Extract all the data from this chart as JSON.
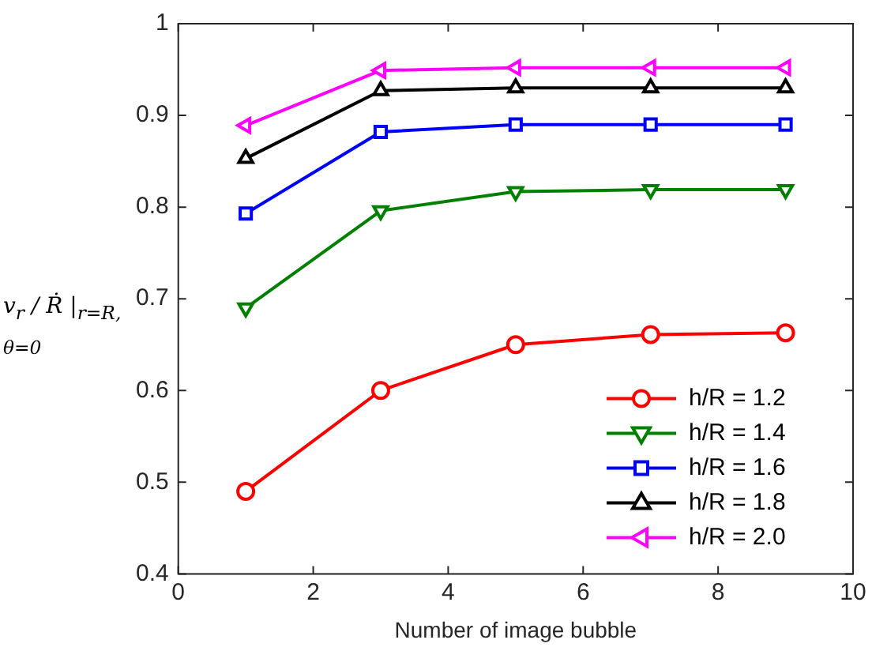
{
  "chart_data": {
    "type": "line",
    "xlabel": "Number of image bubble",
    "ylabel": "v$_{r}$ / Ṙ |$_{r=R, θ=0}$",
    "x": [
      1,
      3,
      5,
      7,
      9
    ],
    "xlim": [
      0,
      10
    ],
    "xticks": [
      0,
      2,
      4,
      6,
      8,
      10
    ],
    "ylim": [
      0.4,
      1
    ],
    "yticks": [
      0.4,
      0.5,
      0.6,
      0.7,
      0.8,
      0.9,
      1
    ],
    "grid": false,
    "legend": "bottom right",
    "line_style": "solid",
    "series": [
      {
        "name": "h/R = 1.2",
        "color": "#ff0000",
        "marker": "circle",
        "values": [
          0.49,
          0.6,
          0.65,
          0.661,
          0.663
        ]
      },
      {
        "name": "h/R = 1.4",
        "color": "#008000",
        "marker": "triangle-down",
        "values": [
          0.69,
          0.796,
          0.817,
          0.819,
          0.819
        ]
      },
      {
        "name": "h/R = 1.6",
        "color": "#0000ff",
        "marker": "square",
        "values": [
          0.793,
          0.882,
          0.89,
          0.89,
          0.89
        ]
      },
      {
        "name": "h/R = 1.8",
        "color": "#000000",
        "marker": "triangle",
        "values": [
          0.853,
          0.927,
          0.93,
          0.93,
          0.93
        ]
      },
      {
        "name": "h/R = 2.0",
        "color": "#ff00ff",
        "marker": "triangle-left",
        "values": [
          0.889,
          0.949,
          0.952,
          0.952,
          0.952
        ]
      }
    ]
  }
}
